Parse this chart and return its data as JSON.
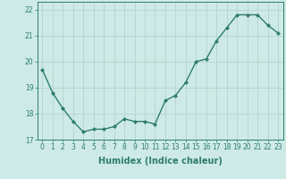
{
  "x": [
    0,
    1,
    2,
    3,
    4,
    5,
    6,
    7,
    8,
    9,
    10,
    11,
    12,
    13,
    14,
    15,
    16,
    17,
    18,
    19,
    20,
    21,
    22,
    23
  ],
  "y": [
    19.7,
    18.8,
    18.2,
    17.7,
    17.3,
    17.4,
    17.4,
    17.5,
    17.8,
    17.7,
    17.7,
    17.6,
    18.5,
    18.7,
    19.2,
    20.0,
    20.1,
    20.8,
    21.3,
    21.8,
    21.8,
    21.8,
    21.4,
    21.1
  ],
  "line_color": "#2e7d70",
  "marker": "D",
  "marker_size": 2.0,
  "line_width": 1.0,
  "bg_color": "#ceeae6",
  "grid_color": "#aed0cc",
  "xlabel": "Humidex (Indice chaleur)",
  "ylabel": "",
  "xlim": [
    -0.5,
    23.5
  ],
  "ylim": [
    17.0,
    22.3
  ],
  "yticks": [
    17,
    18,
    19,
    20,
    21,
    22
  ],
  "xticks": [
    0,
    1,
    2,
    3,
    4,
    5,
    6,
    7,
    8,
    9,
    10,
    11,
    12,
    13,
    14,
    15,
    16,
    17,
    18,
    19,
    20,
    21,
    22,
    23
  ],
  "tick_label_size": 5.5,
  "xlabel_size": 7.0,
  "xlabel_bold": true
}
